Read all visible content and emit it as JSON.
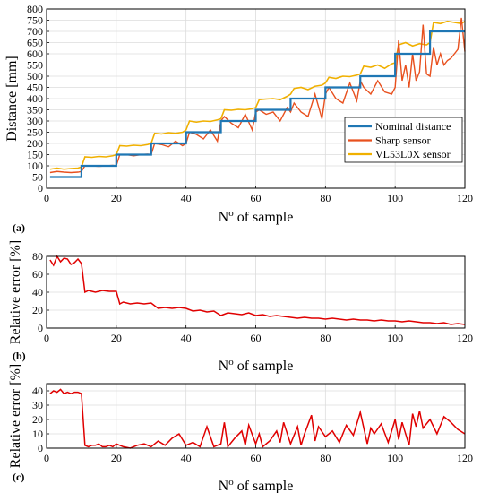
{
  "chart_data": [
    {
      "panel_label": "(a)",
      "type": "line",
      "xlabel": "No of sample",
      "ylabel": "Distance [mm]",
      "xlim": [
        0,
        120
      ],
      "ylim": [
        0,
        800
      ],
      "xticks": [
        0,
        20,
        40,
        60,
        80,
        100,
        120
      ],
      "yticks": [
        0,
        50,
        100,
        150,
        200,
        250,
        300,
        350,
        400,
        450,
        500,
        550,
        600,
        650,
        700,
        750,
        800
      ],
      "grid": true,
      "legend_position": "lower-right",
      "legend": [
        "Nominal distance",
        "Sharp sensor",
        "VL53L0X sensor"
      ],
      "colors": {
        "nominal": "#1f77b4",
        "sharp": "#e8501e",
        "vl53": "#f0b000"
      },
      "series": [
        {
          "name": "Nominal distance",
          "step_x": [
            1,
            10,
            20,
            30,
            40,
            50,
            60,
            70,
            80,
            90,
            100,
            110,
            120
          ],
          "step_y": [
            50,
            100,
            150,
            200,
            250,
            300,
            350,
            400,
            450,
            500,
            600,
            700
          ]
        },
        {
          "name": "Sharp sensor",
          "x": [
            1,
            3,
            5,
            7,
            9,
            10,
            11,
            13,
            15,
            17,
            19,
            20,
            21,
            23,
            25,
            27,
            29,
            30,
            31,
            33,
            35,
            37,
            39,
            40,
            41,
            43,
            45,
            47,
            49,
            50,
            51,
            53,
            55,
            57,
            59,
            60,
            61,
            63,
            65,
            67,
            69,
            70,
            71,
            73,
            75,
            77,
            79,
            80,
            81,
            83,
            85,
            87,
            89,
            90,
            91,
            93,
            95,
            97,
            99,
            100,
            101,
            102,
            103,
            104,
            105,
            106,
            107,
            108,
            109,
            110,
            111,
            112,
            113,
            114,
            115,
            116,
            117,
            118,
            119,
            120
          ],
          "y": [
            70,
            75,
            72,
            70,
            72,
            75,
            100,
            100,
            98,
            100,
            102,
            100,
            150,
            150,
            145,
            150,
            152,
            150,
            200,
            195,
            185,
            210,
            190,
            200,
            250,
            240,
            220,
            260,
            210,
            300,
            320,
            290,
            270,
            330,
            260,
            340,
            350,
            330,
            340,
            300,
            360,
            340,
            380,
            340,
            320,
            420,
            310,
            420,
            450,
            400,
            380,
            470,
            390,
            480,
            450,
            420,
            480,
            430,
            420,
            450,
            660,
            480,
            550,
            450,
            600,
            480,
            520,
            730,
            510,
            500,
            630,
            550,
            600,
            550,
            570,
            580,
            600,
            620,
            760,
            610
          ]
        },
        {
          "name": "VL53L0X sensor",
          "x": [
            1,
            3,
            5,
            7,
            9,
            10,
            11,
            13,
            15,
            17,
            19,
            20,
            21,
            23,
            25,
            27,
            29,
            30,
            31,
            33,
            35,
            37,
            39,
            40,
            41,
            43,
            45,
            47,
            49,
            50,
            51,
            53,
            55,
            57,
            59,
            60,
            61,
            63,
            65,
            67,
            69,
            70,
            71,
            73,
            75,
            77,
            79,
            80,
            81,
            83,
            85,
            87,
            89,
            90,
            91,
            93,
            95,
            97,
            99,
            100,
            101,
            103,
            105,
            107,
            109,
            110,
            111,
            113,
            115,
            117,
            119,
            120
          ],
          "y": [
            85,
            90,
            85,
            88,
            90,
            95,
            140,
            138,
            142,
            140,
            145,
            150,
            190,
            188,
            192,
            190,
            195,
            200,
            245,
            242,
            248,
            245,
            250,
            260,
            300,
            295,
            300,
            298,
            305,
            310,
            350,
            348,
            352,
            350,
            355,
            360,
            395,
            398,
            400,
            395,
            410,
            420,
            445,
            450,
            440,
            455,
            460,
            470,
            495,
            490,
            500,
            498,
            505,
            510,
            545,
            540,
            550,
            535,
            555,
            560,
            640,
            650,
            635,
            645,
            640,
            650,
            740,
            735,
            745,
            740,
            735,
            745
          ]
        }
      ]
    },
    {
      "panel_label": "(b)",
      "type": "line",
      "xlabel": "No of sample",
      "ylabel": "Relative error [%]",
      "xlim": [
        0,
        120
      ],
      "ylim": [
        0,
        80
      ],
      "xticks": [
        0,
        20,
        40,
        60,
        80,
        100,
        120
      ],
      "yticks": [
        0,
        20,
        40,
        60,
        80
      ],
      "grid": true,
      "color": "#e00000",
      "series": [
        {
          "x": [
            1,
            2,
            3,
            4,
            5,
            6,
            7,
            8,
            9,
            10,
            11,
            12,
            14,
            16,
            18,
            20,
            21,
            22,
            24,
            26,
            28,
            30,
            32,
            34,
            36,
            38,
            40,
            42,
            44,
            46,
            48,
            50,
            52,
            54,
            56,
            58,
            60,
            62,
            64,
            66,
            68,
            70,
            72,
            74,
            76,
            78,
            80,
            82,
            84,
            86,
            88,
            90,
            92,
            94,
            96,
            98,
            100,
            102,
            104,
            106,
            108,
            110,
            112,
            114,
            116,
            118,
            120
          ],
          "y": [
            76,
            70,
            80,
            74,
            78,
            77,
            71,
            73,
            77,
            72,
            40,
            42,
            40,
            42,
            41,
            41,
            27,
            29,
            27,
            28,
            27,
            28,
            22,
            23,
            22,
            23,
            22,
            19,
            20,
            18,
            19,
            14,
            17,
            16,
            15,
            17,
            14,
            15,
            13,
            14,
            13,
            12,
            11,
            12,
            11,
            11,
            10,
            11,
            10,
            9,
            10,
            9,
            9,
            8,
            9,
            8,
            8,
            7,
            8,
            7,
            6,
            6,
            5,
            6,
            4,
            5,
            4
          ]
        }
      ]
    },
    {
      "panel_label": "(c)",
      "type": "line",
      "xlabel": "No of sample",
      "ylabel": "Relative error [%]",
      "xlim": [
        0,
        120
      ],
      "ylim": [
        0,
        45
      ],
      "xticks": [
        0,
        20,
        40,
        60,
        80,
        100,
        120
      ],
      "yticks": [
        0,
        10,
        20,
        30,
        40
      ],
      "grid": true,
      "color": "#e00000",
      "series": [
        {
          "x": [
            1,
            2,
            3,
            4,
            5,
            6,
            7,
            8,
            9,
            10,
            11,
            12,
            13,
            14,
            15,
            16,
            17,
            18,
            19,
            20,
            22,
            24,
            26,
            28,
            30,
            32,
            34,
            36,
            38,
            40,
            42,
            44,
            46,
            48,
            50,
            51,
            52,
            54,
            56,
            57,
            58,
            60,
            61,
            62,
            64,
            66,
            67,
            68,
            70,
            72,
            73,
            74,
            76,
            77,
            78,
            80,
            82,
            84,
            86,
            88,
            90,
            92,
            93,
            94,
            96,
            98,
            100,
            101,
            102,
            104,
            105,
            106,
            107,
            108,
            110,
            112,
            114,
            116,
            118,
            120
          ],
          "y": [
            38,
            40,
            39,
            41,
            38,
            39,
            38,
            39,
            39,
            38,
            2,
            1,
            2,
            2,
            3,
            1,
            1,
            2,
            1,
            3,
            1,
            0,
            2,
            3,
            1,
            5,
            2,
            7,
            10,
            2,
            4,
            1,
            15,
            1,
            3,
            18,
            1,
            7,
            12,
            2,
            16,
            3,
            10,
            1,
            5,
            12,
            4,
            18,
            3,
            15,
            2,
            10,
            23,
            5,
            15,
            8,
            12,
            4,
            16,
            9,
            25,
            3,
            14,
            10,
            17,
            4,
            20,
            6,
            18,
            2,
            24,
            15,
            26,
            14,
            20,
            10,
            22,
            18,
            13,
            10
          ]
        }
      ]
    }
  ]
}
